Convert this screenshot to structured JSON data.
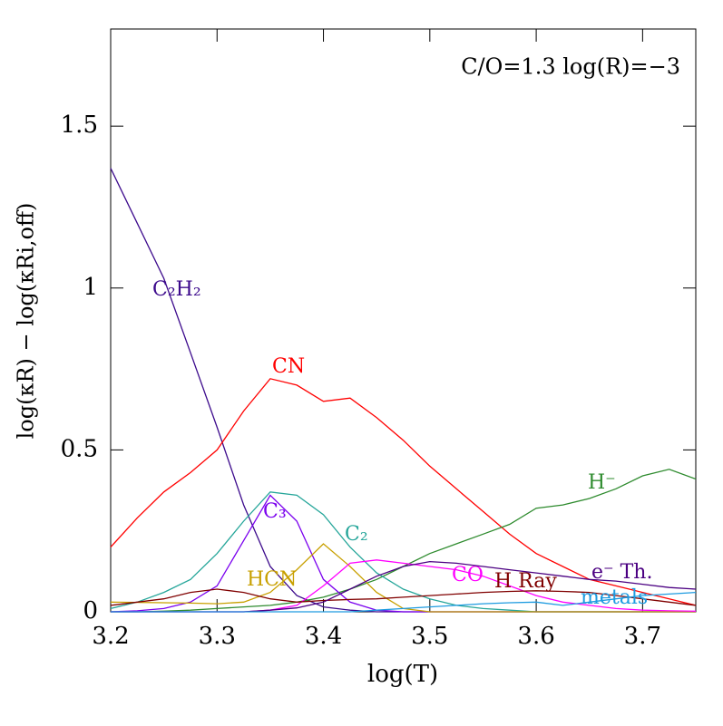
{
  "chart_data": {
    "type": "line",
    "annotation": "C/O=1.3 log(R)=−3",
    "x_label": "log(T)",
    "y_label": "log(κR) − log(κRi,off)",
    "x": [
      3.2,
      3.225,
      3.25,
      3.275,
      3.3,
      3.325,
      3.35,
      3.375,
      3.4,
      3.425,
      3.45,
      3.475,
      3.5,
      3.525,
      3.55,
      3.575,
      3.6,
      3.625,
      3.65,
      3.675,
      3.7,
      3.725,
      3.75
    ],
    "series": [
      {
        "name": "C₂H₂",
        "color": "#3c0a8c",
        "values": [
          1.37,
          1.2,
          1.03,
          0.8,
          0.57,
          0.33,
          0.14,
          0.05,
          0.015,
          0.005,
          0,
          0,
          0,
          0,
          0,
          0,
          0,
          0,
          0,
          0,
          0,
          0,
          0
        ]
      },
      {
        "name": "CN",
        "color": "#ff0000",
        "values": [
          0.2,
          0.29,
          0.37,
          0.43,
          0.5,
          0.62,
          0.72,
          0.7,
          0.65,
          0.66,
          0.6,
          0.53,
          0.45,
          0.38,
          0.31,
          0.24,
          0.18,
          0.14,
          0.1,
          0.08,
          0.06,
          0.04,
          0.02
        ]
      },
      {
        "name": "H⁻",
        "color": "#2e8b2e",
        "values": [
          0,
          0,
          0.002,
          0.005,
          0.01,
          0.015,
          0.02,
          0.03,
          0.045,
          0.07,
          0.1,
          0.14,
          0.18,
          0.21,
          0.24,
          0.27,
          0.32,
          0.33,
          0.35,
          0.38,
          0.42,
          0.44,
          0.41
        ]
      },
      {
        "name": "C₃",
        "color": "#7a00ee",
        "values": [
          0,
          0.003,
          0.01,
          0.03,
          0.08,
          0.22,
          0.36,
          0.28,
          0.1,
          0.03,
          0.005,
          0,
          0,
          0,
          0,
          0,
          0,
          0,
          0,
          0,
          0,
          0,
          0
        ]
      },
      {
        "name": "C₂",
        "color": "#26a69a",
        "values": [
          0.01,
          0.03,
          0.06,
          0.1,
          0.18,
          0.28,
          0.37,
          0.36,
          0.3,
          0.2,
          0.12,
          0.07,
          0.04,
          0.02,
          0.01,
          0.005,
          0,
          0,
          0,
          0,
          0,
          0,
          0
        ]
      },
      {
        "name": "HCN",
        "color": "#c8a000",
        "values": [
          0.03,
          0.029,
          0.028,
          0.027,
          0.025,
          0.03,
          0.06,
          0.13,
          0.21,
          0.14,
          0.06,
          0.01,
          0,
          0,
          0,
          0,
          0,
          0,
          0,
          0,
          0,
          0,
          0
        ]
      },
      {
        "name": "CO",
        "color": "#ff00ff",
        "values": [
          0,
          0,
          0,
          0,
          0,
          0,
          0.005,
          0.02,
          0.08,
          0.15,
          0.16,
          0.15,
          0.14,
          0.13,
          0.11,
          0.08,
          0.05,
          0.03,
          0.02,
          0.01,
          0.005,
          0.003,
          0.002
        ]
      },
      {
        "name": "H Ray",
        "color": "#800000",
        "values": [
          0.02,
          0.03,
          0.04,
          0.06,
          0.07,
          0.06,
          0.04,
          0.03,
          0.035,
          0.038,
          0.04,
          0.045,
          0.05,
          0.055,
          0.06,
          0.063,
          0.065,
          0.063,
          0.06,
          0.05,
          0.04,
          0.03,
          0.02
        ]
      },
      {
        "name": "e⁻ Th.",
        "color": "#4b0082",
        "values": [
          0,
          0,
          0,
          0,
          0,
          0,
          0.005,
          0.012,
          0.03,
          0.07,
          0.11,
          0.14,
          0.155,
          0.15,
          0.14,
          0.13,
          0.12,
          0.11,
          0.1,
          0.095,
          0.085,
          0.075,
          0.07
        ]
      },
      {
        "name": "metals",
        "color": "#1e9be0",
        "values": [
          0,
          0,
          0,
          0,
          0,
          0,
          0,
          0,
          0,
          0,
          0.005,
          0.01,
          0.015,
          0.02,
          0.025,
          0.028,
          0.03,
          0.02,
          0.03,
          0.04,
          0.05,
          0.055,
          0.06
        ]
      }
    ],
    "xlim": [
      3.2,
      3.75
    ],
    "xticks": [
      3.2,
      3.3,
      3.4,
      3.5,
      3.6,
      3.7
    ],
    "ylim": [
      0,
      1.8
    ],
    "yticks": [
      0,
      0.5,
      1,
      1.5
    ]
  }
}
